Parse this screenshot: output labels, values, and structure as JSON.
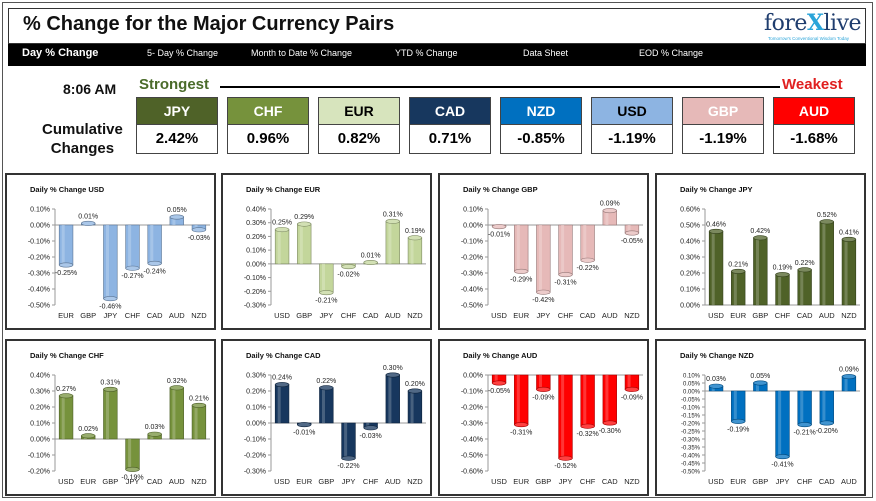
{
  "header": {
    "title": "% Change for the Major Currency Pairs",
    "logo": {
      "text_main": "fore",
      "text_x": "X",
      "text_end": "live",
      "tagline": "Tomorrow's Conventional Wisdom Today"
    }
  },
  "nav": {
    "items": [
      {
        "label": "Day % Change",
        "active": true
      },
      {
        "label": "5- Day % Change",
        "active": false
      },
      {
        "label": "Month to Date % Change",
        "active": false
      },
      {
        "label": "YTD % Change",
        "active": false
      },
      {
        "label": "Data Sheet",
        "active": false
      },
      {
        "label": "EOD % Change",
        "active": false
      }
    ]
  },
  "summary": {
    "time": "8:06 AM",
    "strongest_label": "Strongest",
    "weakest_label": "Weakest",
    "cumulative_line1": "Cumulative",
    "cumulative_line2": "Changes",
    "currencies": [
      {
        "code": "JPY",
        "value": "2.42%",
        "bg": "#4f6228",
        "fg": "#ffffff"
      },
      {
        "code": "CHF",
        "value": "0.96%",
        "bg": "#76923c",
        "fg": "#ffffff"
      },
      {
        "code": "EUR",
        "value": "0.82%",
        "bg": "#d7e4bd",
        "fg": "#000000"
      },
      {
        "code": "CAD",
        "value": "0.71%",
        "bg": "#17375e",
        "fg": "#ffffff"
      },
      {
        "code": "NZD",
        "value": "-0.85%",
        "bg": "#0070c0",
        "fg": "#ffffff"
      },
      {
        "code": "USD",
        "value": "-1.19%",
        "bg": "#8db4e2",
        "fg": "#000000"
      },
      {
        "code": "GBP",
        "value": "-1.19%",
        "bg": "#e6b9b8",
        "fg": "#ffffff"
      },
      {
        "code": "AUD",
        "value": "-1.68%",
        "bg": "#ff0000",
        "fg": "#ffffff"
      }
    ]
  },
  "chart_data": [
    {
      "type": "bar",
      "title": "Daily % Change USD",
      "color": "#8db4e2",
      "categories": [
        "EUR",
        "GBP",
        "JPY",
        "CHF",
        "CAD",
        "AUD",
        "NZD"
      ],
      "values": [
        -0.25,
        0.01,
        -0.46,
        -0.27,
        -0.24,
        0.05,
        -0.03
      ],
      "labels": [
        "-0.25%",
        "0.01%",
        "-0.46%",
        "-0.27%",
        "-0.24%",
        "0.05%",
        "-0.03%"
      ],
      "ylim": [
        -0.5,
        0.1
      ],
      "ticks": [
        0.1,
        0,
        -0.1,
        -0.2,
        -0.3,
        -0.4,
        -0.5
      ],
      "tick_labels": [
        "0.10%",
        "0.00%",
        "-0.10%",
        "-0.20%",
        "-0.30%",
        "-0.40%",
        "-0.50%"
      ]
    },
    {
      "type": "bar",
      "title": "Daily % Change EUR",
      "color": "#c3d69b",
      "categories": [
        "USD",
        "GBP",
        "JPY",
        "CHF",
        "CAD",
        "AUD",
        "NZD"
      ],
      "values": [
        0.25,
        0.29,
        -0.21,
        -0.02,
        0.01,
        0.31,
        0.19
      ],
      "labels": [
        "0.25%",
        "0.29%",
        "-0.21%",
        "-0.02%",
        "0.01%",
        "0.31%",
        "0.19%"
      ],
      "ylim": [
        -0.3,
        0.4
      ],
      "ticks": [
        0.4,
        0.3,
        0.2,
        0.1,
        0,
        -0.1,
        -0.2,
        -0.3
      ],
      "tick_labels": [
        "0.40%",
        "0.30%",
        "0.20%",
        "0.10%",
        "0.00%",
        "-0.10%",
        "-0.20%",
        "-0.30%"
      ]
    },
    {
      "type": "bar",
      "title": "Daily % Change GBP",
      "color": "#e6b9b8",
      "categories": [
        "USD",
        "EUR",
        "JPY",
        "CHF",
        "CAD",
        "AUD",
        "NZD"
      ],
      "values": [
        -0.01,
        -0.29,
        -0.42,
        -0.31,
        -0.22,
        0.09,
        -0.05
      ],
      "labels": [
        "-0.01%",
        "-0.29%",
        "-0.42%",
        "-0.31%",
        "-0.22%",
        "0.09%",
        "-0.05%"
      ],
      "ylim": [
        -0.5,
        0.1
      ],
      "ticks": [
        0.1,
        0,
        -0.1,
        -0.2,
        -0.3,
        -0.4,
        -0.5
      ],
      "tick_labels": [
        "0.10%",
        "0.00%",
        "-0.10%",
        "-0.20%",
        "-0.30%",
        "-0.40%",
        "-0.50%"
      ]
    },
    {
      "type": "bar",
      "title": "Daily % Change JPY",
      "color": "#4f6228",
      "categories": [
        "USD",
        "EUR",
        "GBP",
        "CHF",
        "CAD",
        "AUD",
        "NZD"
      ],
      "values": [
        0.46,
        0.21,
        0.42,
        0.19,
        0.22,
        0.52,
        0.41
      ],
      "labels": [
        "0.46%",
        "0.21%",
        "0.42%",
        "0.19%",
        "0.22%",
        "0.52%",
        "0.41%"
      ],
      "ylim": [
        0,
        0.6
      ],
      "ticks": [
        0.6,
        0.5,
        0.4,
        0.3,
        0.2,
        0.1,
        0
      ],
      "tick_labels": [
        "0.60%",
        "0.50%",
        "0.40%",
        "0.30%",
        "0.20%",
        "0.10%",
        "0.00%"
      ]
    },
    {
      "type": "bar",
      "title": "Daily % Change CHF",
      "color": "#76923c",
      "categories": [
        "USD",
        "EUR",
        "GBP",
        "JPY",
        "CAD",
        "AUD",
        "NZD"
      ],
      "values": [
        0.27,
        0.02,
        0.31,
        -0.19,
        0.03,
        0.32,
        0.21
      ],
      "labels": [
        "0.27%",
        "0.02%",
        "0.31%",
        "-0.19%",
        "0.03%",
        "0.32%",
        "0.21%"
      ],
      "ylim": [
        -0.2,
        0.4
      ],
      "ticks": [
        0.4,
        0.3,
        0.2,
        0.1,
        0,
        -0.1,
        -0.2
      ],
      "tick_labels": [
        "0.40%",
        "0.30%",
        "0.20%",
        "0.10%",
        "0.00%",
        "-0.10%",
        "-0.20%"
      ]
    },
    {
      "type": "bar",
      "title": "Daily % Change CAD",
      "color": "#17375e",
      "categories": [
        "USD",
        "EUR",
        "GBP",
        "JPY",
        "CHF",
        "AUD",
        "NZD"
      ],
      "values": [
        0.24,
        -0.01,
        0.22,
        -0.22,
        -0.03,
        0.3,
        0.2
      ],
      "labels": [
        "0.24%",
        "-0.01%",
        "0.22%",
        "-0.22%",
        "-0.03%",
        "0.30%",
        "0.20%"
      ],
      "ylim": [
        -0.3,
        0.3
      ],
      "ticks": [
        0.3,
        0.2,
        0.1,
        0,
        -0.1,
        -0.2,
        -0.3
      ],
      "tick_labels": [
        "0.30%",
        "0.20%",
        "0.10%",
        "0.00%",
        "-0.10%",
        "-0.20%",
        "-0.30%"
      ]
    },
    {
      "type": "bar",
      "title": "Daily % Change AUD",
      "color": "#ff0000",
      "categories": [
        "USD",
        "EUR",
        "GBP",
        "JPY",
        "CHF",
        "CAD",
        "NZD"
      ],
      "values": [
        -0.05,
        -0.31,
        -0.09,
        -0.52,
        -0.32,
        -0.3,
        -0.09
      ],
      "labels": [
        "-0.05%",
        "-0.31%",
        "-0.09%",
        "-0.52%",
        "-0.32%",
        "-0.30%",
        "-0.09%"
      ],
      "ylim": [
        -0.6,
        0
      ],
      "ticks": [
        0,
        -0.1,
        -0.2,
        -0.3,
        -0.4,
        -0.5,
        -0.6
      ],
      "tick_labels": [
        "0.00%",
        "-0.10%",
        "-0.20%",
        "-0.30%",
        "-0.40%",
        "-0.50%",
        "-0.60%"
      ]
    },
    {
      "type": "bar",
      "title": "Daily % Change NZD",
      "color": "#0070c0",
      "categories": [
        "USD",
        "EUR",
        "GBP",
        "JPY",
        "CHF",
        "CAD",
        "AUD"
      ],
      "values": [
        0.03,
        -0.19,
        0.05,
        -0.41,
        -0.21,
        -0.2,
        0.09
      ],
      "labels": [
        "0.03%",
        "-0.19%",
        "0.05%",
        "-0.41%",
        "-0.21%",
        "-0.20%",
        "0.09%"
      ],
      "ylim": [
        -0.5,
        0.1
      ],
      "ticks": [
        0.1,
        0.05,
        0,
        -0.05,
        -0.1,
        -0.15,
        -0.2,
        -0.25,
        -0.3,
        -0.35,
        -0.4,
        -0.45,
        -0.5
      ],
      "tick_labels": [
        "0.10%",
        "0.05%",
        "0.00%",
        "-0.05%",
        "-0.10%",
        "-0.15%",
        "-0.20%",
        "-0.25%",
        "-0.30%",
        "-0.35%",
        "-0.40%",
        "-0.45%",
        "-0.50%"
      ]
    }
  ]
}
